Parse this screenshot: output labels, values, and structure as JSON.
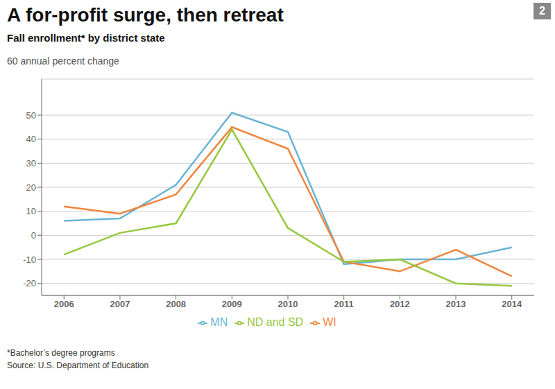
{
  "chart_data": {
    "type": "line",
    "title": "A for-profit surge, then retreat",
    "subtitle": "Fall enrollment* by district state",
    "ylabel": "60  annual percent change",
    "annotations": [
      "*Bachelor’s degree programs",
      "Source: U.S. Department of Education",
      "2"
    ],
    "x": [
      2006,
      2007,
      2008,
      2009,
      2010,
      2011,
      2012,
      2013,
      2014
    ],
    "series": [
      {
        "name": "MN",
        "color": "#6ab4d4",
        "values": [
          6,
          7,
          21,
          51,
          43,
          -12,
          -10,
          -10,
          -5
        ]
      },
      {
        "name": "WI",
        "color": "#f0843c",
        "values": [
          12,
          9,
          17,
          45,
          36,
          -11,
          -15,
          -6,
          -17
        ]
      },
      {
        "name": "ND and SD",
        "color": "#96c83c",
        "values": [
          -8,
          1,
          5,
          44,
          3,
          -11,
          -10,
          -20,
          -21
        ]
      }
    ],
    "xlim": [
      2005.6,
      2014.4
    ],
    "xticks": [
      2006,
      2007,
      2008,
      2009,
      2010,
      2011,
      2012,
      2013,
      2014
    ],
    "ylim": [
      -25,
      65
    ],
    "yticks": [
      -20,
      -10,
      0,
      10,
      20,
      30,
      40,
      50
    ],
    "grid": true,
    "legend": "bottom"
  }
}
